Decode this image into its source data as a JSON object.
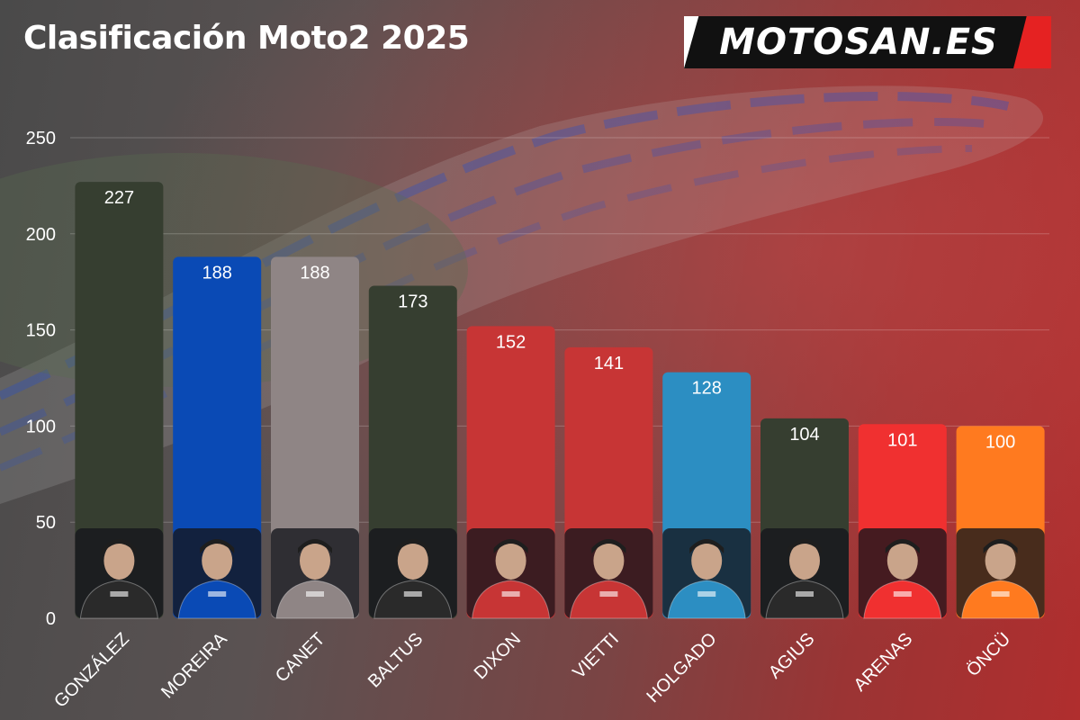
{
  "header": {
    "title": "Clasificación Moto2 2025",
    "logo_text": "MOTOSAN.ES"
  },
  "colors": {
    "background_left": "#4a4a4a",
    "background_right": "#b02e2e",
    "text": "#ffffff"
  },
  "chart_data": {
    "type": "bar",
    "title": "Clasificación Moto2 2025",
    "categories": [
      "GONZÁLEZ",
      "MOREIRA",
      "CANET",
      "BALTUS",
      "DIXON",
      "VIETTI",
      "HOLGADO",
      "AGIUS",
      "ARENAS",
      "ÖNCÜ"
    ],
    "values": [
      227,
      188,
      188,
      173,
      152,
      141,
      128,
      104,
      101,
      100
    ],
    "bar_colors": [
      "#363e30",
      "#0a4ab5",
      "#8f8585",
      "#363e30",
      "#c73535",
      "#c73535",
      "#2c8ec2",
      "#363e30",
      "#f03030",
      "#ff7a1f"
    ],
    "ylim": [
      0,
      250
    ],
    "yticks": [
      0,
      50,
      100,
      150,
      200,
      250
    ],
    "grid": true,
    "data_labels": true,
    "rider_photos": true
  }
}
